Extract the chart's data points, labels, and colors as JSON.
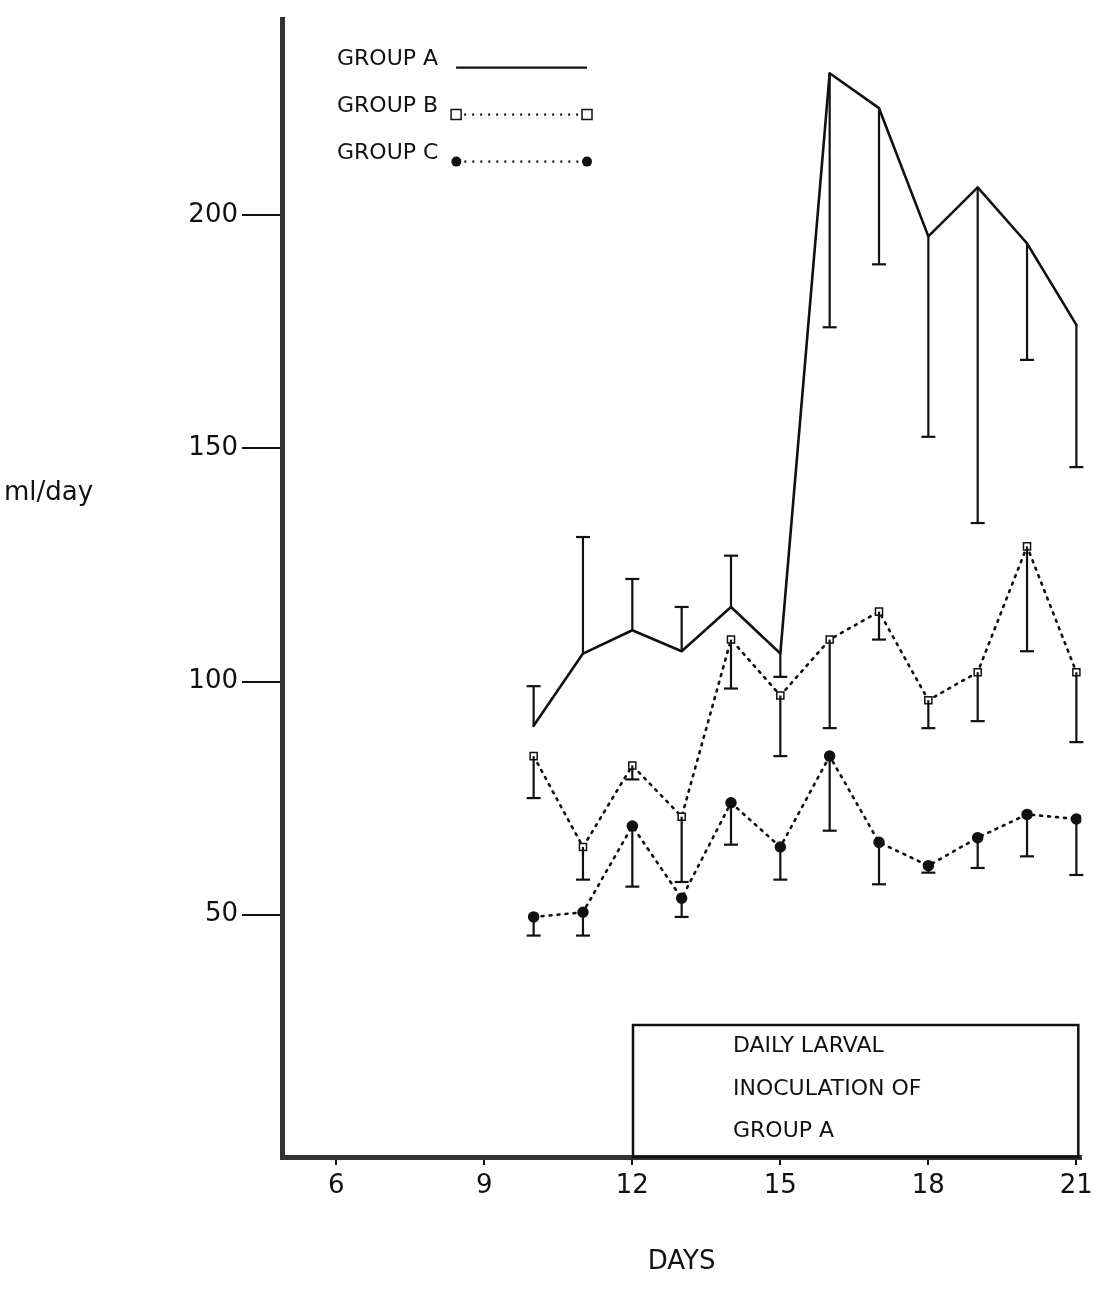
{
  "chart_data": {
    "type": "line",
    "xlabel": "DAYS",
    "ylabel": "ml/day",
    "x": [
      10,
      11,
      12,
      13,
      14,
      15,
      16,
      17,
      18,
      19,
      20,
      21
    ],
    "xlim": [
      4.9,
      21.1
    ],
    "xticks": [
      6,
      9,
      12,
      15,
      18,
      21
    ],
    "ylim": [
      -2,
      242
    ],
    "yticks": [
      50,
      100,
      150,
      200
    ],
    "legend": "top left",
    "series": [
      {
        "name": "GROUP A",
        "color": "#111111",
        "marker": "none",
        "line_style": "solid",
        "values": [
          90.5,
          106,
          111,
          106.5,
          116,
          106,
          230.5,
          223,
          195.5,
          206,
          194,
          176.5
        ],
        "errors": [
          [
            90.5,
            99
          ],
          [
            106,
            131
          ],
          [
            111,
            122
          ],
          [
            106.5,
            116
          ],
          [
            116,
            127
          ],
          [
            101,
            106
          ],
          [
            176,
            230.5
          ],
          [
            189.5,
            223
          ],
          [
            152.5,
            195.5
          ],
          [
            134,
            206
          ],
          [
            169,
            194
          ],
          [
            146,
            176.5
          ]
        ]
      },
      {
        "name": "GROUP B",
        "color": "#111111",
        "marker": "square",
        "line_style": "dotted",
        "values": [
          84,
          64.5,
          82,
          71,
          109,
          97,
          109,
          115,
          96,
          102,
          129,
          102
        ],
        "errors": [
          [
            75,
            84
          ],
          [
            57.5,
            64.5
          ],
          [
            79,
            82
          ],
          [
            57,
            71
          ],
          [
            98.5,
            109
          ],
          [
            84,
            97
          ],
          [
            90,
            109
          ],
          [
            109,
            115
          ],
          [
            90,
            96
          ],
          [
            91.5,
            102
          ],
          [
            106.5,
            129
          ],
          [
            87,
            102
          ]
        ]
      },
      {
        "name": "GROUP C",
        "color": "#111111",
        "marker": "circle",
        "line_style": "dotted",
        "values": [
          49.5,
          50.5,
          69,
          53.5,
          74,
          64.5,
          84,
          65.5,
          60.5,
          66.5,
          71.5,
          70.5
        ],
        "errors": [
          [
            45.5,
            49.5
          ],
          [
            45.5,
            50.5
          ],
          [
            56,
            69
          ],
          [
            49.5,
            53.5
          ],
          [
            65,
            74
          ],
          [
            57.5,
            64.5
          ],
          [
            68,
            84
          ],
          [
            56.5,
            65.5
          ],
          [
            59,
            60.5
          ],
          [
            60,
            66.5
          ],
          [
            62.5,
            71.5
          ],
          [
            58.5,
            70.5
          ]
        ]
      }
    ],
    "annotations": [
      "DAILY LARVAL INOCULATION OF GROUP A"
    ]
  }
}
